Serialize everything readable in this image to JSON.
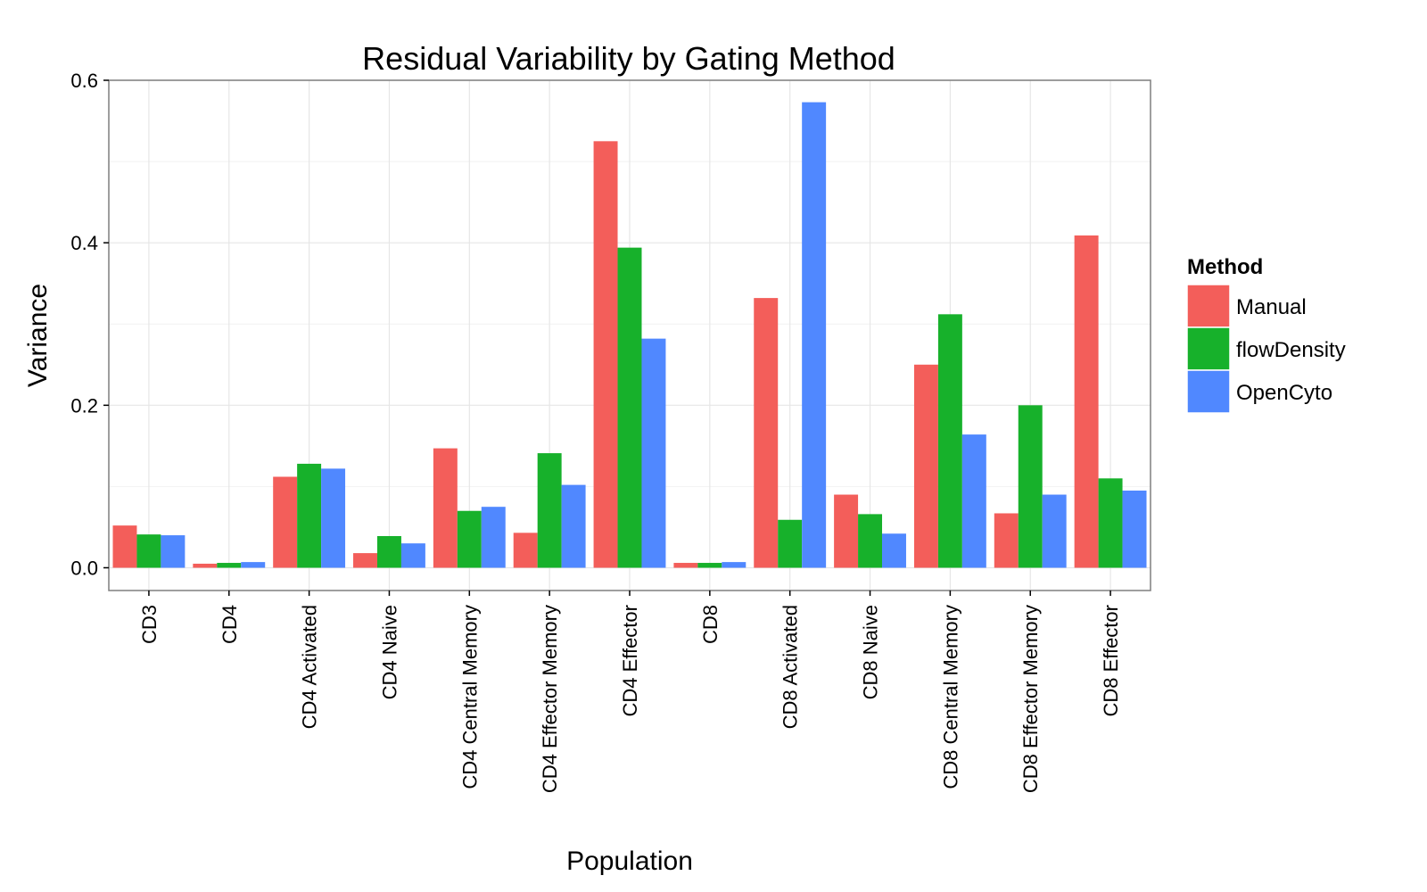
{
  "chart_data": {
    "type": "bar",
    "title": "Residual Variability by Gating Method",
    "xlabel": "Population",
    "ylabel": "Variance",
    "ylim": [
      -0.028,
      0.6
    ],
    "yticks": [
      "0.0",
      "0.2",
      "0.4",
      "0.6"
    ],
    "grid": true,
    "legend_title": "Method",
    "legend_position": "right",
    "categories": [
      "CD3",
      "CD4",
      "CD4 Activated",
      "CD4 Naive",
      "CD4 Central Memory",
      "CD4 Effector Memory",
      "CD4 Effector",
      "CD8",
      "CD8 Activated",
      "CD8 Naive",
      "CD8 Central Memory",
      "CD8 Effector Memory",
      "CD8 Effector"
    ],
    "series": [
      {
        "name": "Manual",
        "color": "#F35E5A",
        "values": [
          0.052,
          0.005,
          0.112,
          0.018,
          0.147,
          0.043,
          0.525,
          0.006,
          0.332,
          0.09,
          0.25,
          0.067,
          0.409
        ]
      },
      {
        "name": "flowDensity",
        "color": "#17B12B",
        "values": [
          0.041,
          0.006,
          0.128,
          0.039,
          0.07,
          0.141,
          0.394,
          0.006,
          0.059,
          0.066,
          0.312,
          0.2,
          0.11
        ]
      },
      {
        "name": "OpenCyto",
        "color": "#5088FF",
        "values": [
          0.04,
          0.007,
          0.122,
          0.03,
          0.075,
          0.102,
          0.282,
          0.007,
          0.573,
          0.042,
          0.164,
          0.09,
          0.095
        ]
      }
    ]
  }
}
